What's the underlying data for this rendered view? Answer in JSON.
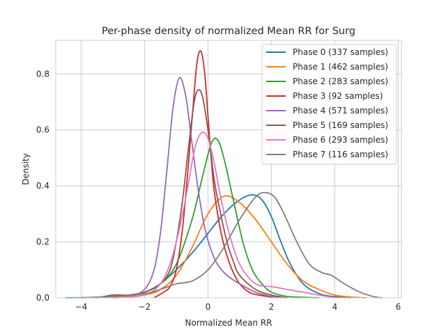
{
  "chart_data": {
    "type": "line",
    "title": "Per-phase density of normalized Mean RR for Surg",
    "xlabel": "Normalized Mean RR",
    "ylabel": "Density",
    "xlim": [
      -4.8,
      6.1
    ],
    "ylim": [
      0,
      0.92
    ],
    "xticks": [
      -4,
      -2,
      0,
      2,
      4,
      6
    ],
    "yticks": [
      0.0,
      0.2,
      0.4,
      0.6,
      0.8
    ],
    "grid": true,
    "legend_position": "top-right",
    "series": [
      {
        "name": "Phase 0 (337 samples)",
        "color": "#1f77b4",
        "x": [
          -4.5,
          -3.5,
          -3,
          -2.5,
          -2,
          -1.5,
          -1,
          -0.5,
          0,
          0.5,
          1,
          1.4,
          1.7,
          2,
          2.3,
          2.6,
          3,
          3.5,
          4,
          4.5
        ],
        "y": [
          0,
          0.002,
          0.005,
          0.01,
          0.02,
          0.05,
          0.1,
          0.16,
          0.23,
          0.3,
          0.35,
          0.368,
          0.35,
          0.29,
          0.2,
          0.12,
          0.05,
          0.015,
          0.004,
          0
        ]
      },
      {
        "name": "Phase 1 (462 samples)",
        "color": "#ff7f0e",
        "x": [
          -4,
          -3,
          -2,
          -1.5,
          -1,
          -0.5,
          0,
          0.5,
          1,
          1.5,
          2,
          2.5,
          3,
          3.5,
          4,
          4.5,
          5
        ],
        "y": [
          0,
          0.003,
          0.01,
          0.03,
          0.08,
          0.18,
          0.3,
          0.363,
          0.34,
          0.28,
          0.2,
          0.12,
          0.06,
          0.03,
          0.01,
          0.003,
          0
        ]
      },
      {
        "name": "Phase 2 (283 samples)",
        "color": "#2ca02c",
        "x": [
          -3.5,
          -3,
          -2.5,
          -2,
          -1.5,
          -1,
          -0.5,
          -0.2,
          0.1,
          0.3,
          0.5,
          0.8,
          1.1,
          1.4,
          1.7,
          2,
          2.5,
          3,
          3.5
        ],
        "y": [
          0,
          0.005,
          0.01,
          0.02,
          0.05,
          0.12,
          0.28,
          0.42,
          0.55,
          0.565,
          0.5,
          0.35,
          0.2,
          0.1,
          0.05,
          0.02,
          0.005,
          0.002,
          0
        ]
      },
      {
        "name": "Phase 3 (92 samples)",
        "color": "#d62728",
        "x": [
          -1.7,
          -1.4,
          -1.2,
          -1,
          -0.8,
          -0.6,
          -0.4,
          -0.3,
          -0.2,
          -0.1,
          0,
          0.1,
          0.2,
          0.4,
          0.6,
          0.8,
          1,
          1.3,
          1.6,
          2.2
        ],
        "y": [
          0,
          0.02,
          0.04,
          0.1,
          0.25,
          0.5,
          0.78,
          0.87,
          0.875,
          0.8,
          0.65,
          0.5,
          0.38,
          0.24,
          0.15,
          0.09,
          0.05,
          0.02,
          0.01,
          0
        ]
      },
      {
        "name": "Phase 4 (571 samples)",
        "color": "#9467bd",
        "x": [
          -3,
          -2.5,
          -2,
          -1.7,
          -1.5,
          -1.3,
          -1.1,
          -0.9,
          -0.7,
          -0.5,
          -0.3,
          -0.1,
          0.1,
          0.3,
          0.6,
          1,
          1.5,
          2,
          2.5
        ],
        "y": [
          0,
          0.003,
          0.03,
          0.1,
          0.23,
          0.45,
          0.68,
          0.786,
          0.72,
          0.55,
          0.38,
          0.25,
          0.17,
          0.12,
          0.08,
          0.05,
          0.02,
          0.005,
          0
        ]
      },
      {
        "name": "Phase 5 (169 samples)",
        "color": "#8c564b",
        "x": [
          -3.5,
          -3,
          -2.5,
          -2,
          -1.5,
          -1.2,
          -1,
          -0.8,
          -0.6,
          -0.4,
          -0.2,
          0,
          0.2,
          0.4,
          0.6,
          0.8,
          1,
          1.5,
          2,
          2.5
        ],
        "y": [
          0,
          0.01,
          0.01,
          0.02,
          0.05,
          0.1,
          0.2,
          0.35,
          0.55,
          0.72,
          0.73,
          0.6,
          0.42,
          0.3,
          0.2,
          0.13,
          0.08,
          0.03,
          0.01,
          0
        ]
      },
      {
        "name": "Phase 6 (293 samples)",
        "color": "#e377c2",
        "x": [
          -3,
          -2,
          -1.5,
          -1.2,
          -1,
          -0.8,
          -0.6,
          -0.4,
          -0.2,
          0,
          0.2,
          0.4,
          0.6,
          0.8,
          1,
          1.3,
          1.6,
          2,
          2.5,
          3,
          3.5,
          4
        ],
        "y": [
          0,
          0.01,
          0.05,
          0.12,
          0.2,
          0.3,
          0.42,
          0.54,
          0.59,
          0.57,
          0.48,
          0.36,
          0.26,
          0.18,
          0.12,
          0.07,
          0.045,
          0.04,
          0.03,
          0.02,
          0.01,
          0
        ]
      },
      {
        "name": "Phase 7 (116 samples)",
        "color": "#7f7f7f",
        "x": [
          -4,
          -3,
          -2,
          -1.5,
          -1,
          -0.5,
          0,
          0.5,
          1,
          1.5,
          1.8,
          2.1,
          2.4,
          2.8,
          3.2,
          3.6,
          3.9,
          4.3,
          4.8,
          5.2,
          5.5
        ],
        "y": [
          0,
          0.005,
          0.015,
          0.03,
          0.05,
          0.06,
          0.1,
          0.18,
          0.28,
          0.36,
          0.376,
          0.36,
          0.3,
          0.2,
          0.12,
          0.09,
          0.08,
          0.05,
          0.02,
          0.005,
          0
        ]
      }
    ]
  }
}
